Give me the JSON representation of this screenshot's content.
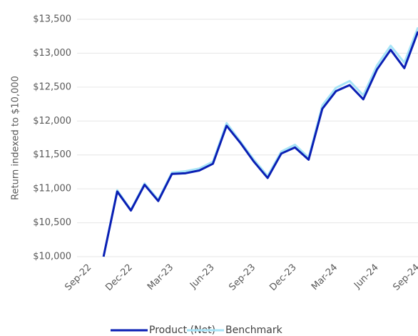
{
  "chart_data": {
    "type": "line",
    "y_label": "Return indexed to $10,000",
    "categories": [
      "Sep-22",
      null,
      null,
      "Dec-22",
      null,
      null,
      "Mar-23",
      null,
      null,
      "Jun-23",
      null,
      null,
      "Sep-23",
      null,
      null,
      "Dec-23",
      null,
      null,
      "Mar-24",
      null,
      null,
      "Jun-24",
      null,
      null,
      "Sep-24"
    ],
    "series": [
      {
        "name": "Product (Net)",
        "color": "#0a1fb4",
        "values": [
          null,
          10000,
          10960,
          10680,
          11060,
          10820,
          11220,
          11230,
          11270,
          11370,
          11930,
          11680,
          11400,
          11160,
          11520,
          11610,
          11430,
          12180,
          12440,
          12530,
          12320,
          12760,
          13050,
          12780,
          13320
        ]
      },
      {
        "name": "Benchmark",
        "color": "#a6e4f7",
        "values": [
          null,
          10000,
          10980,
          10690,
          11080,
          10840,
          11240,
          11260,
          11300,
          11400,
          11970,
          11700,
          11430,
          11190,
          11550,
          11650,
          11460,
          12230,
          12490,
          12590,
          12380,
          12820,
          13110,
          12860,
          13380
        ]
      }
    ],
    "ylim": [
      10000,
      13500
    ],
    "yticks": [
      {
        "value": 10000,
        "label": "$10,000"
      },
      {
        "value": 10500,
        "label": "$10,500"
      },
      {
        "value": 11000,
        "label": "$11,000"
      },
      {
        "value": 11500,
        "label": "$11,500"
      },
      {
        "value": 12000,
        "label": "$12,000"
      },
      {
        "value": 12500,
        "label": "$12,500"
      },
      {
        "value": 13000,
        "label": "$13,000"
      },
      {
        "value": 13500,
        "label": "$13,500"
      }
    ],
    "grid": true,
    "legend": "bottom"
  }
}
